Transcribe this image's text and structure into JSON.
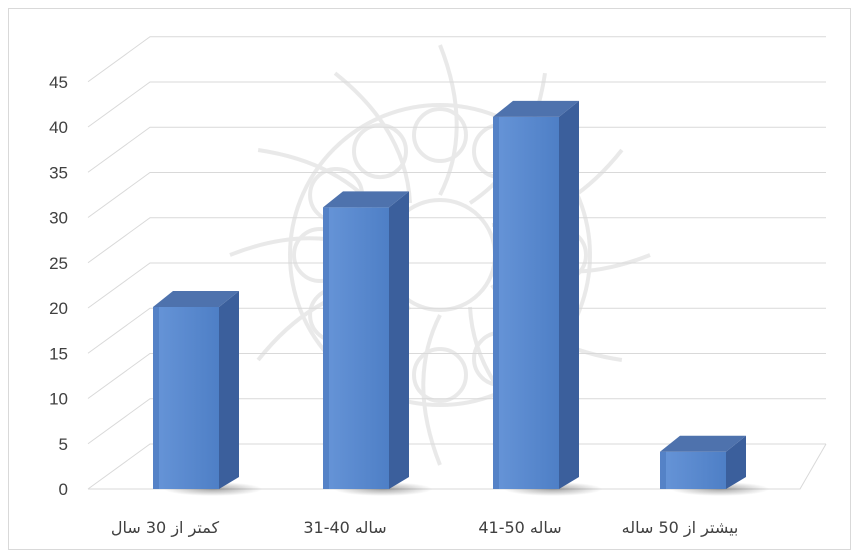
{
  "chart_data": {
    "type": "bar",
    "style": "3d-column",
    "categories": [
      "کمتر از 30 سال",
      "31-40 ساله",
      "41-50 ساله",
      "بیشتر از 50 ساله"
    ],
    "values": [
      21,
      32,
      42,
      5
    ],
    "ylim": [
      0,
      45
    ],
    "yticks": [
      0,
      5,
      10,
      15,
      20,
      25,
      30,
      35,
      40,
      45
    ],
    "grid": true,
    "legend": "none",
    "colors": {
      "bar_front": "#5b8bd0",
      "bar_front_dark": "#4a76bd",
      "bar_side": "#3b5f9c",
      "bar_top": "#4e72ad",
      "grid": "#d9d9d9"
    }
  }
}
